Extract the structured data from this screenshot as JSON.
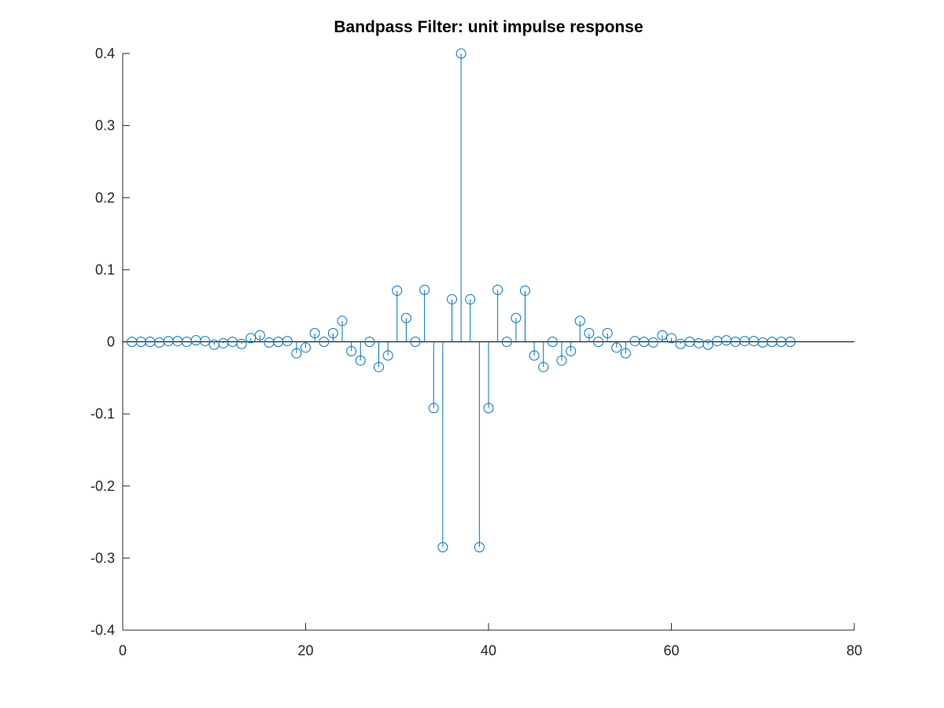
{
  "chart_data": {
    "type": "stem",
    "title": "Bandpass Filter: unit impulse response",
    "xlabel": "",
    "ylabel": "",
    "xlim": [
      0,
      80
    ],
    "ylim": [
      -0.4,
      0.4
    ],
    "xticks": [
      0,
      20,
      40,
      60,
      80
    ],
    "yticks": [
      -0.4,
      -0.3,
      -0.2,
      -0.1,
      0,
      0.1,
      0.2,
      0.3,
      0.4
    ],
    "xtick_labels": [
      "0",
      "20",
      "40",
      "60",
      "80"
    ],
    "ytick_labels": [
      "-0.4",
      "-0.3",
      "-0.2",
      "-0.1",
      "0",
      "0.1",
      "0.2",
      "0.3",
      "0.4"
    ],
    "grid": false,
    "box": "left-bottom",
    "series_color": "#0072bd",
    "marker": "circle",
    "x": [
      1,
      2,
      3,
      4,
      5,
      6,
      7,
      8,
      9,
      10,
      11,
      12,
      13,
      14,
      15,
      16,
      17,
      18,
      19,
      20,
      21,
      22,
      23,
      24,
      25,
      26,
      27,
      28,
      29,
      30,
      31,
      32,
      33,
      34,
      35,
      36,
      37,
      38,
      39,
      40,
      41,
      42,
      43,
      44,
      45,
      46,
      47,
      48,
      49,
      50,
      51,
      52,
      53,
      54,
      55,
      56,
      57,
      58,
      59,
      60,
      61,
      62,
      63,
      64,
      65,
      66,
      67,
      68,
      69,
      70,
      71,
      72,
      73
    ],
    "y": [
      0,
      0,
      0,
      -0.001,
      0.001,
      0.001,
      0,
      0.002,
      0.001,
      -0.004,
      -0.002,
      0,
      -0.003,
      0.005,
      0.009,
      -0.001,
      0,
      0.001,
      -0.016,
      -0.008,
      0.012,
      0,
      0.012,
      0.029,
      -0.013,
      -0.026,
      0,
      -0.035,
      -0.019,
      0.071,
      0.033,
      0,
      0.072,
      -0.092,
      -0.285,
      0.059,
      0.4,
      0.059,
      -0.285,
      -0.092,
      0.072,
      0,
      0.033,
      0.071,
      -0.019,
      -0.035,
      0,
      -0.026,
      -0.013,
      0.029,
      0.012,
      0,
      0.012,
      -0.008,
      -0.016,
      0.001,
      0,
      -0.001,
      0.009,
      0.005,
      -0.003,
      0,
      -0.002,
      -0.004,
      0.001,
      0.002,
      0,
      0.001,
      0.001,
      -0.001,
      0,
      0,
      0
    ]
  }
}
